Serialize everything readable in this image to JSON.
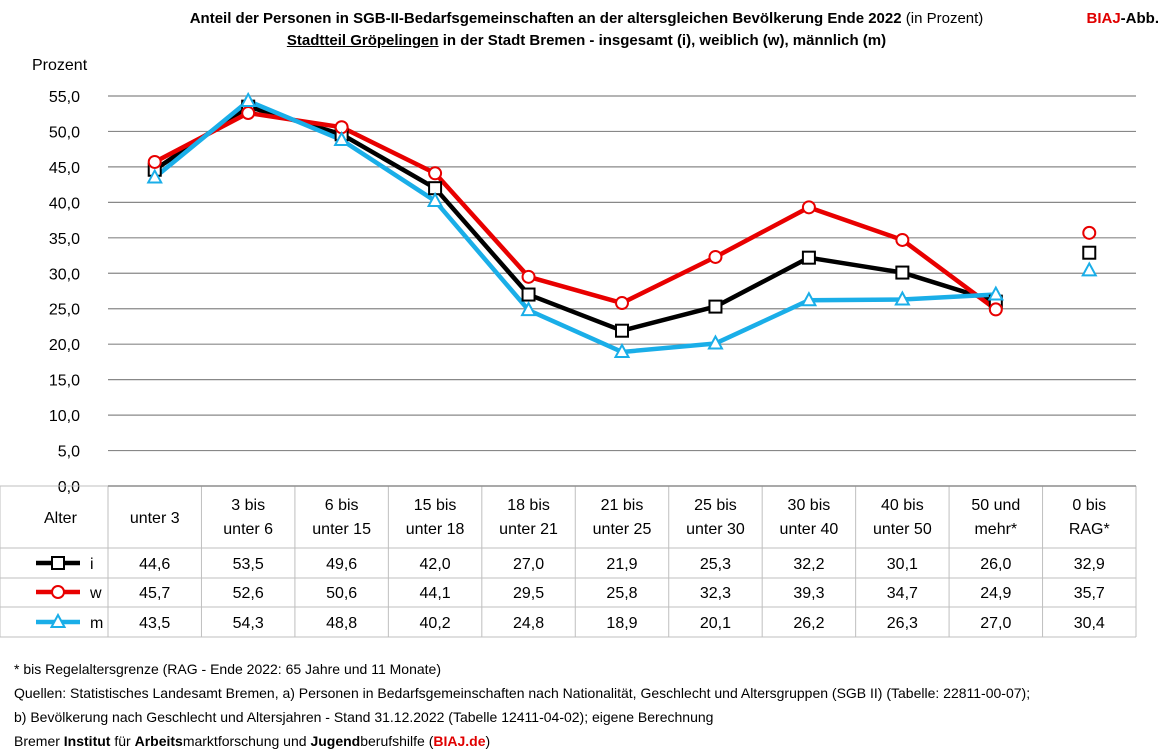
{
  "header": {
    "title_line1_bold": "Anteil der Personen in SGB-II-Bedarfsgemeinschaften an der altersgleichen Bevölkerung Ende 2022",
    "title_line1_normal": "(in Prozent)",
    "title_line2_underlined": "Stadtteil Gröpelingen",
    "title_line2_rest": "in der Stadt Bremen - insgesamt (i), weiblich (w), männlich (m)",
    "tag_red": "BIAJ",
    "tag_black": "-Abb."
  },
  "colors": {
    "i": "#000000",
    "w": "#e80000",
    "m": "#1aaee8",
    "grid": "#888888",
    "table_border": "#bfbfbf"
  },
  "chart_data": {
    "type": "line",
    "ylabel": "Prozent",
    "xlabel": "Alter",
    "ylim": [
      0,
      55
    ],
    "ytick_step": 5,
    "ytick_labels": [
      "0,0",
      "5,0",
      "10,0",
      "15,0",
      "20,0",
      "25,0",
      "30,0",
      "35,0",
      "40,0",
      "45,0",
      "50,0",
      "55,0"
    ],
    "categories": [
      [
        "unter 3"
      ],
      [
        "3 bis",
        "unter 6"
      ],
      [
        "6 bis",
        "unter 15"
      ],
      [
        "15 bis",
        "unter 18"
      ],
      [
        "18 bis",
        "unter 21"
      ],
      [
        "21 bis",
        "unter 25"
      ],
      [
        "25 bis",
        "unter 30"
      ],
      [
        "30 bis",
        "unter 40"
      ],
      [
        "40 bis",
        "unter 50"
      ],
      [
        "50 und",
        "mehr*"
      ],
      [
        "0 bis",
        "RAG*"
      ]
    ],
    "connected_points": 10,
    "series": [
      {
        "key": "i",
        "name": "i",
        "marker": "square",
        "values": [
          44.6,
          53.5,
          49.6,
          42.0,
          27.0,
          21.9,
          25.3,
          32.2,
          30.1,
          26.0,
          32.9
        ],
        "labels": [
          "44,6",
          "53,5",
          "49,6",
          "42,0",
          "27,0",
          "21,9",
          "25,3",
          "32,2",
          "30,1",
          "26,0",
          "32,9"
        ]
      },
      {
        "key": "w",
        "name": "w",
        "marker": "circle",
        "values": [
          45.7,
          52.6,
          50.6,
          44.1,
          29.5,
          25.8,
          32.3,
          39.3,
          34.7,
          24.9,
          35.7
        ],
        "labels": [
          "45,7",
          "52,6",
          "50,6",
          "44,1",
          "29,5",
          "25,8",
          "32,3",
          "39,3",
          "34,7",
          "24,9",
          "35,7"
        ]
      },
      {
        "key": "m",
        "name": "m",
        "marker": "triangle",
        "values": [
          43.5,
          54.3,
          48.8,
          40.2,
          24.8,
          18.9,
          20.1,
          26.2,
          26.3,
          27.0,
          30.4
        ],
        "labels": [
          "43,5",
          "54,3",
          "48,8",
          "40,2",
          "24,8",
          "18,9",
          "20,1",
          "26,2",
          "26,3",
          "27,0",
          "30,4"
        ]
      }
    ]
  },
  "footer": {
    "line1": "* bis Regelaltersgrenze (RAG - Ende 2022: 65 Jahre und 11 Monate)",
    "line2": "Quellen: Statistisches Landesamt Bremen, a) Personen in Bedarfsgemeinschaften nach Nationalität, Geschlecht und Altersgruppen (SGB II) (Tabelle: 22811-00-07);",
    "line3": "b) Bevölkerung nach Geschlecht und Altersjahren - Stand 31.12.2022 (Tabelle 12411-04-02); eigene Berechnung",
    "line4": {
      "p1": "Bremer ",
      "b1": "Institut",
      "p2": " für ",
      "b2": "Arbeits",
      "p3": "marktforschung und ",
      "b3": "Jugend",
      "p4": "berufshilfe (",
      "link": "BIAJ.de",
      "p5": ")"
    }
  }
}
